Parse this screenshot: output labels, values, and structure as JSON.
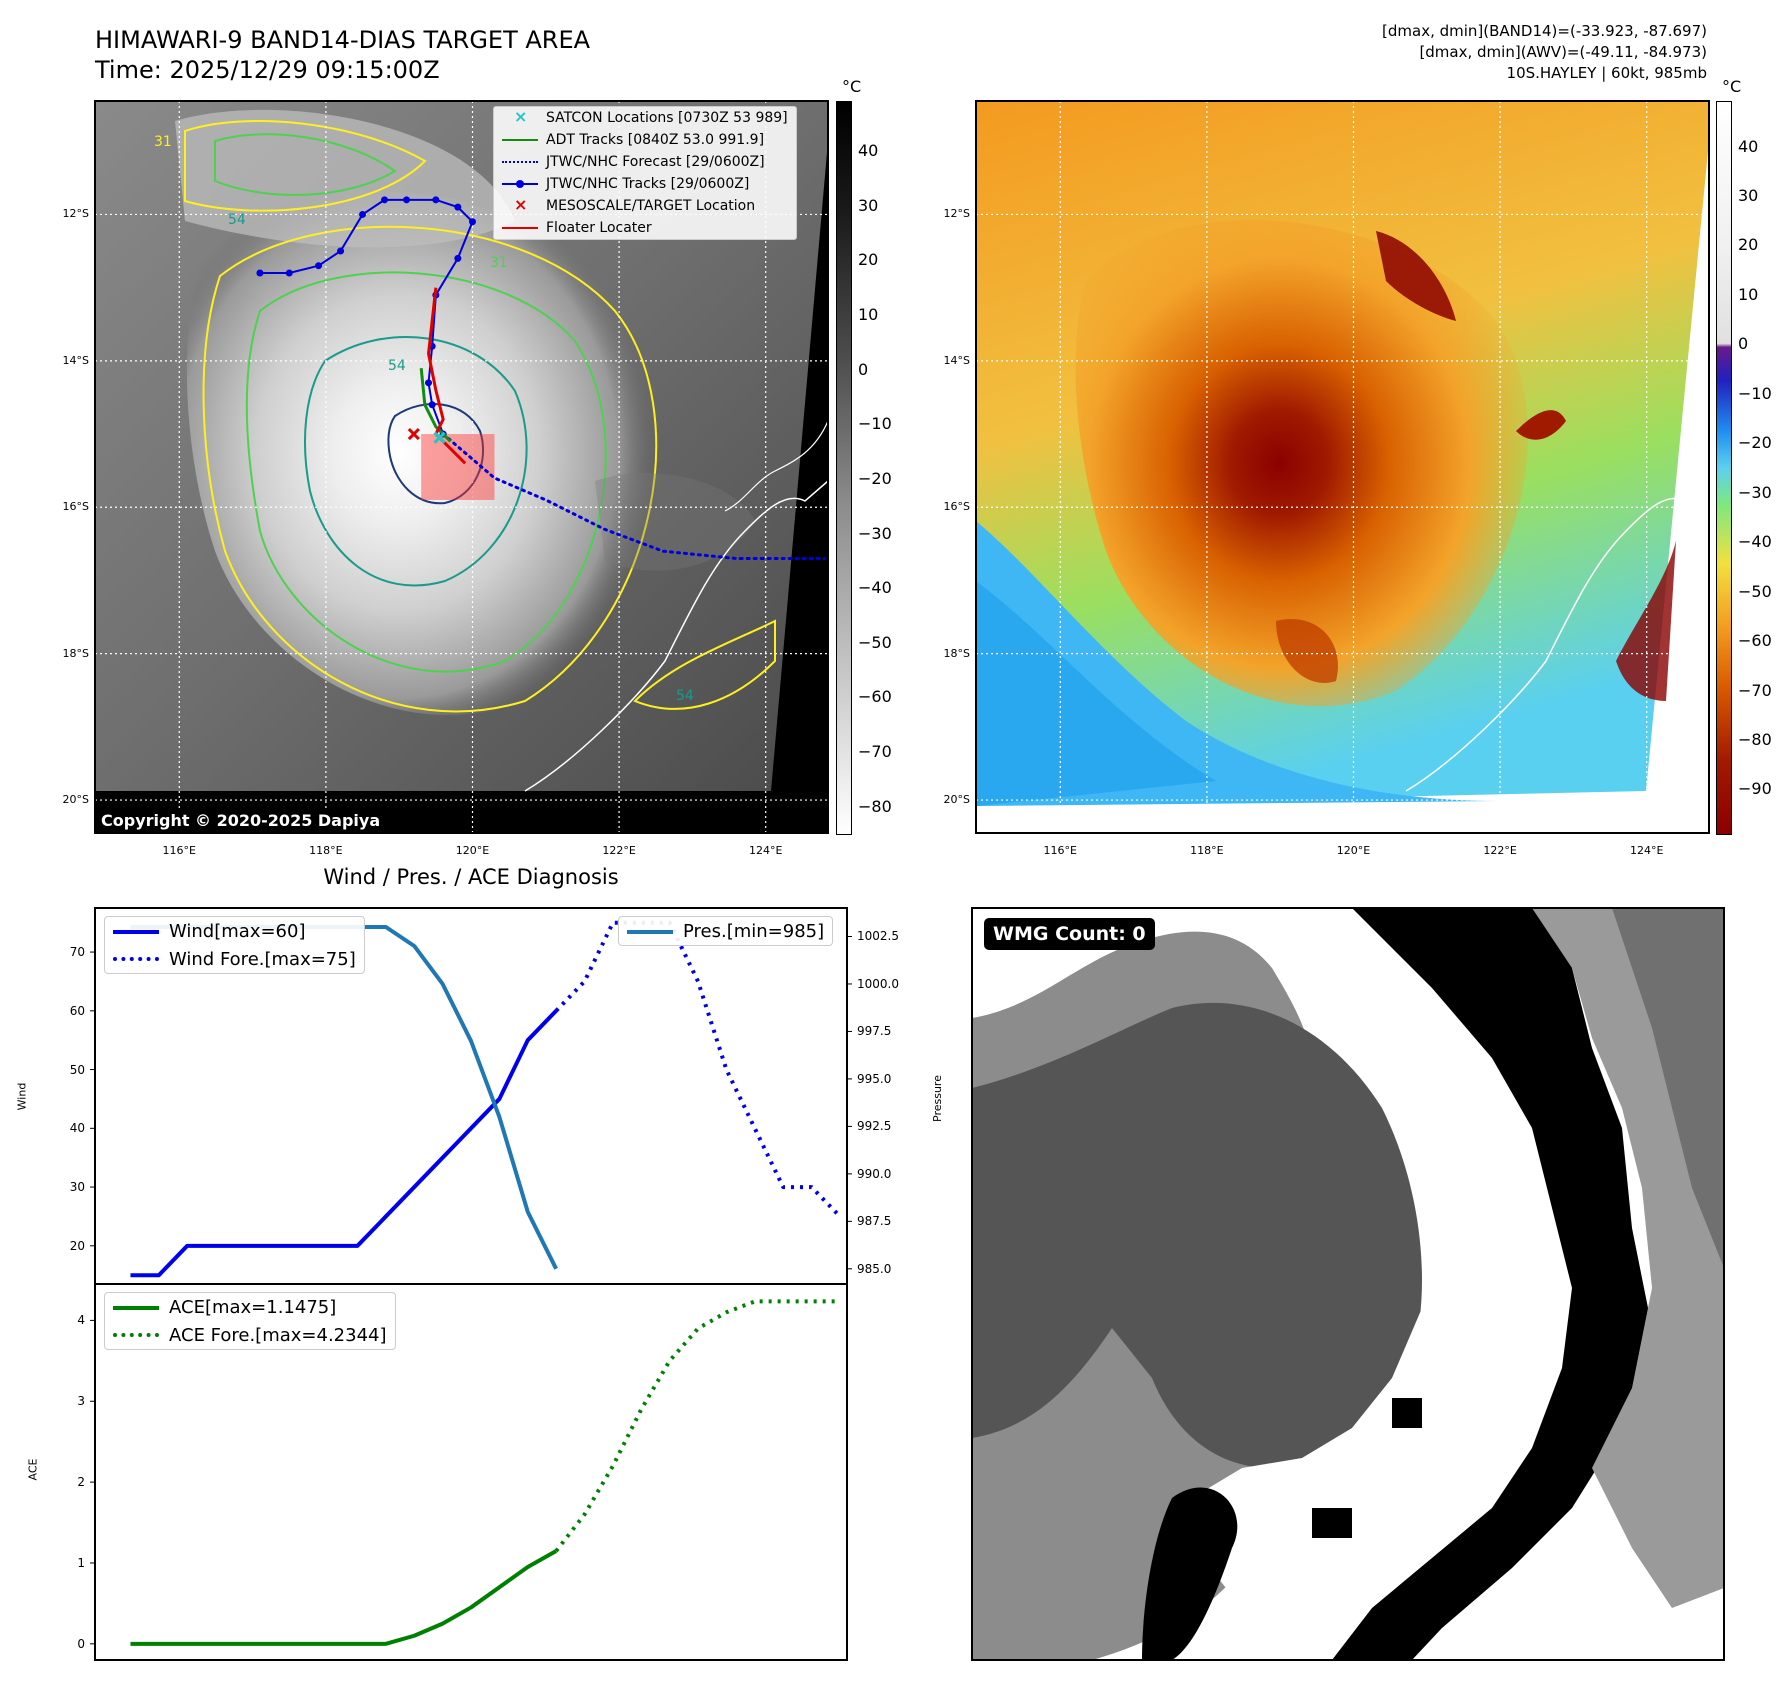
{
  "header": {
    "title_line1": "HIMAWARI-9 BAND14-DIAS TARGET AREA",
    "title_line2": "Time: 2025/12/29 09:15:00Z",
    "info_line1": "[dmax, dmin](BAND14)=(-33.923, -87.697)",
    "info_line2": "[dmax, dmin](AWV)=(-49.11, -84.973)",
    "info_line3": "10S.HAYLEY | 60kt, 985mb"
  },
  "map_axes": {
    "lon_ticks": [
      "116°E",
      "118°E",
      "120°E",
      "122°E",
      "124°E"
    ],
    "lat_ticks": [
      "12°S",
      "14°S",
      "16°S",
      "18°S",
      "20°S"
    ]
  },
  "colorbar_ir": {
    "unit": "°C",
    "ticks": [
      "40",
      "30",
      "20",
      "10",
      "0",
      "−10",
      "−20",
      "−30",
      "−40",
      "−50",
      "−60",
      "−70",
      "−80"
    ]
  },
  "colorbar_awv": {
    "unit": "°C",
    "ticks": [
      "40",
      "30",
      "20",
      "10",
      "0",
      "−10",
      "−20",
      "−30",
      "−40",
      "−50",
      "−60",
      "−70",
      "−80",
      "−90"
    ]
  },
  "map_legend": [
    {
      "label": "SATCON Locations [0730Z 53 989]",
      "color": "#1ec8c8",
      "style": "x-marker"
    },
    {
      "label": "ADT Tracks [0840Z 53.0 991.9]",
      "color": "#128c12",
      "style": "line"
    },
    {
      "label": "JTWC/NHC Forecast [29/0600Z]",
      "color": "#0000dd",
      "style": "dotted"
    },
    {
      "label": "JTWC/NHC Tracks [29/0600Z]",
      "color": "#0000dd",
      "style": "line-dot"
    },
    {
      "label": "MESOSCALE/TARGET Location",
      "color": "#e00000",
      "style": "x-marker"
    },
    {
      "label": "Floater Locater",
      "color": "#e00000",
      "style": "line"
    }
  ],
  "copyright": "Copyright © 2020-2025 Dapiya",
  "contour_labels": [
    "31",
    "54",
    "31",
    "54",
    "54"
  ],
  "track_map": {
    "jtwc_track": [
      [
        117.1,
        12.8
      ],
      [
        117.5,
        12.8
      ],
      [
        117.9,
        12.7
      ],
      [
        118.2,
        12.5
      ],
      [
        118.5,
        12.0
      ],
      [
        118.8,
        11.8
      ],
      [
        119.1,
        11.8
      ],
      [
        119.5,
        11.8
      ],
      [
        119.8,
        11.9
      ],
      [
        120.0,
        12.1
      ],
      [
        119.8,
        12.6
      ],
      [
        119.5,
        13.1
      ],
      [
        119.45,
        13.8
      ],
      [
        119.4,
        14.3
      ],
      [
        119.45,
        14.6
      ],
      [
        119.6,
        15.0
      ]
    ],
    "jtwc_forecast": [
      [
        119.6,
        15.0
      ],
      [
        120.3,
        15.6
      ],
      [
        121.0,
        15.9
      ],
      [
        121.8,
        16.3
      ],
      [
        122.6,
        16.6
      ],
      [
        123.6,
        16.7
      ],
      [
        124.8,
        16.7
      ]
    ],
    "floater": [
      [
        119.5,
        13.0
      ],
      [
        119.4,
        13.9
      ],
      [
        119.5,
        14.4
      ],
      [
        119.6,
        14.8
      ],
      [
        119.5,
        15.0
      ],
      [
        119.7,
        15.2
      ],
      [
        119.9,
        15.4
      ]
    ],
    "adt_track": [
      [
        119.3,
        14.1
      ],
      [
        119.35,
        14.6
      ],
      [
        119.5,
        14.9
      ],
      [
        119.7,
        15.1
      ]
    ],
    "target_box": {
      "lon": [
        119.3,
        120.3
      ],
      "lat": [
        15.0,
        15.9
      ]
    },
    "target_x": [
      119.2,
      15.0
    ],
    "satcon_x": [
      119.55,
      15.05
    ]
  },
  "chart_data": [
    {
      "type": "line",
      "title": "Wind / Pres. / ACE Diagnosis",
      "ylabel": "Wind",
      "ylabel_right": "Pressure",
      "ylim": [
        13.5,
        77.5
      ],
      "ylim_right": [
        984.2,
        1004.0
      ],
      "yticks": [
        20,
        30,
        40,
        50,
        60,
        70
      ],
      "yticks_right": [
        985.0,
        987.5,
        990.0,
        992.5,
        995.0,
        997.5,
        1000.0,
        1002.5
      ],
      "ytick_labels_right": [
        "985.0",
        "987.5",
        "990.0",
        "992.5",
        "995.0",
        "997.5",
        "1000.0",
        "1002.5"
      ],
      "x": [
        0,
        1,
        2,
        3,
        4,
        5,
        6,
        7,
        8,
        9,
        10,
        11,
        12,
        13,
        14,
        15,
        16,
        17,
        18,
        19,
        20,
        21,
        22,
        23,
        24,
        25
      ],
      "series": [
        {
          "name": "Wind[max=60]",
          "color": "#0000ee",
          "style": "solid",
          "axis": "left",
          "x": [
            0,
            1,
            2,
            3,
            4,
            5,
            6,
            7,
            8,
            9,
            10,
            11,
            12,
            13,
            14,
            15
          ],
          "values": [
            15,
            15,
            20,
            20,
            20,
            20,
            20,
            20,
            20,
            25,
            30,
            35,
            40,
            45,
            55,
            60
          ]
        },
        {
          "name": "Wind Fore.[max=75]",
          "color": "#0000ee",
          "style": "dotted",
          "axis": "left",
          "x": [
            15,
            16,
            17,
            18,
            19,
            20,
            21,
            22,
            23,
            24,
            25
          ],
          "values": [
            60,
            65,
            75,
            75,
            75,
            65,
            50,
            40,
            30,
            30,
            25
          ]
        },
        {
          "name": "Pres.[min=985]",
          "color": "#1f77b4",
          "style": "solid",
          "axis": "right",
          "x": [
            0,
            1,
            2,
            3,
            4,
            5,
            6,
            7,
            8,
            9,
            10,
            11,
            12,
            13,
            14,
            15
          ],
          "values": [
            1003,
            1003,
            1003,
            1003,
            1003,
            1003,
            1003,
            1003,
            1003,
            1003,
            1002,
            1000,
            997,
            993,
            988,
            985
          ]
        }
      ],
      "legend": "upper-left-and-upper-right"
    },
    {
      "type": "line",
      "ylabel": "ACE",
      "ylim": [
        -0.2,
        4.45
      ],
      "yticks": [
        0,
        1,
        2,
        3,
        4
      ],
      "x": [
        0,
        1,
        2,
        3,
        4,
        5,
        6,
        7,
        8,
        9,
        10,
        11,
        12,
        13,
        14,
        15,
        16,
        17,
        18,
        19,
        20,
        21,
        22,
        23,
        24,
        25
      ],
      "series": [
        {
          "name": "ACE[max=1.1475]",
          "color": "#008000",
          "style": "solid",
          "x": [
            0,
            1,
            2,
            3,
            4,
            5,
            6,
            7,
            8,
            9,
            10,
            11,
            12,
            13,
            14,
            15
          ],
          "values": [
            0,
            0,
            0,
            0,
            0,
            0,
            0,
            0,
            0,
            0,
            0.1,
            0.25,
            0.45,
            0.7,
            0.95,
            1.1475
          ]
        },
        {
          "name": "ACE Fore.[max=4.2344]",
          "color": "#008000",
          "style": "dotted",
          "x": [
            15,
            16,
            17,
            18,
            19,
            20,
            21,
            22,
            23,
            24,
            25
          ],
          "values": [
            1.1475,
            1.6,
            2.2,
            2.9,
            3.5,
            3.9,
            4.1,
            4.2344,
            4.2344,
            4.2344,
            4.2344
          ]
        }
      ],
      "legend": "upper-left"
    }
  ],
  "wmg_panel": {
    "label": "WMG Count: 0"
  }
}
